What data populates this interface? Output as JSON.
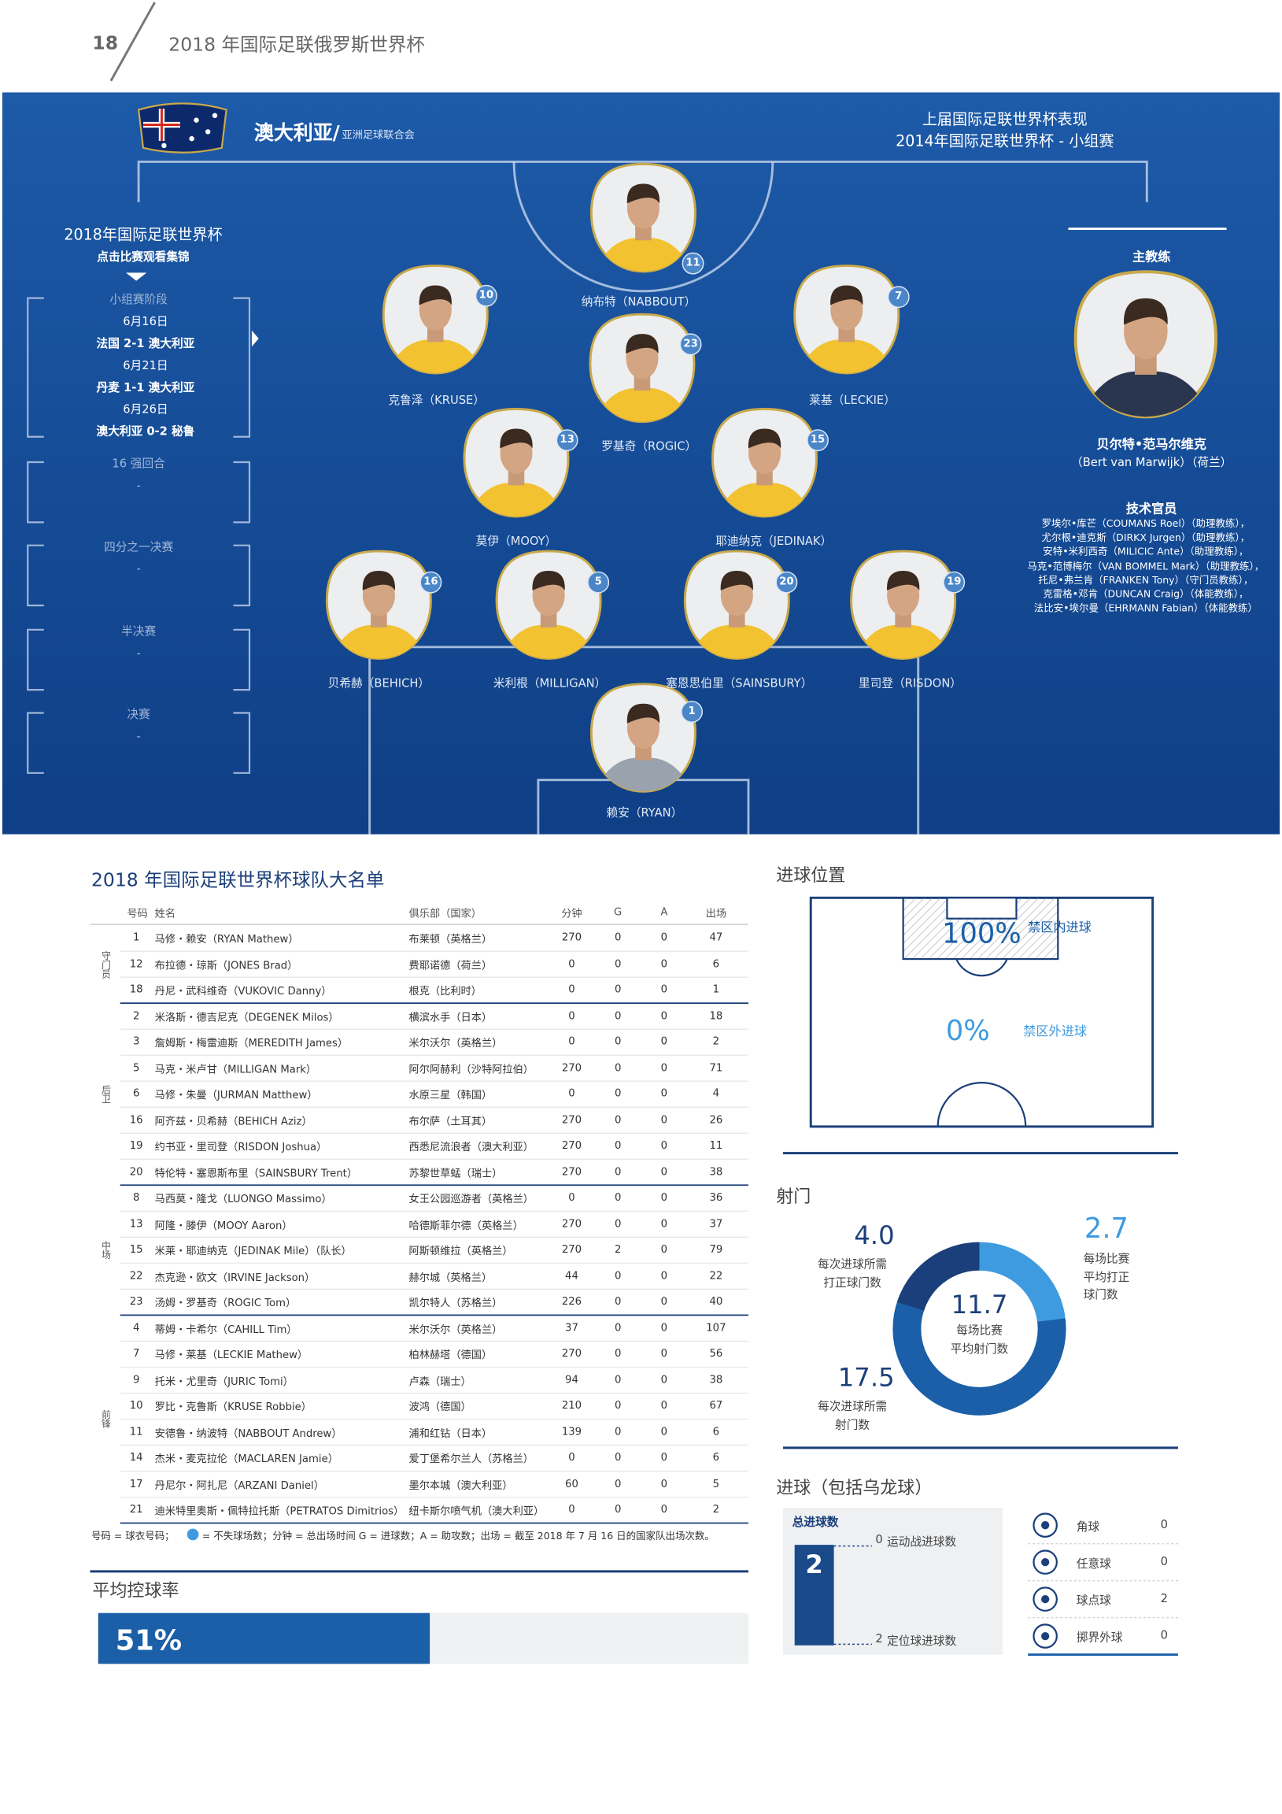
{
  "header": {
    "page_number": 18,
    "title": "2018 年国际足联俄罗斯世界杯"
  },
  "team": {
    "name": "澳大利亚/",
    "confederation": "亚洲足球联合会"
  },
  "previous": {
    "title": "上届国际足联世界杯表现",
    "result": "2014年国际足联世界杯 - 小组赛"
  },
  "tournament": {
    "title": "2018年国际足联世界杯",
    "subtitle": "点击比赛观看集锦",
    "stages": [
      {
        "name": "小组赛阶段",
        "matches": [
          {
            "date": "6月16日",
            "result": "法国 2-1 澳大利亚"
          },
          {
            "date": "6月21日",
            "result": "丹麦 1-1 澳大利亚"
          },
          {
            "date": "6月26日",
            "result": "澳大利亚 0-2 秘鲁"
          }
        ]
      },
      {
        "name": "16 强回合",
        "result": "-"
      },
      {
        "name": "四分之一决赛",
        "result": "-"
      },
      {
        "name": "半决赛",
        "result": "-"
      },
      {
        "name": "决赛",
        "result": "-"
      }
    ]
  },
  "lineup": [
    {
      "number": 11,
      "name": "纳布特（NABBOUT）"
    },
    {
      "number": 10,
      "name": "克鲁泽（KRUSE）"
    },
    {
      "number": 23,
      "name": "罗基奇（ROGIC）"
    },
    {
      "number": 7,
      "name": "莱基（LECKIE）"
    },
    {
      "number": 13,
      "name": "莫伊（MOOY）"
    },
    {
      "number": 15,
      "name": "耶迪纳克（JEDINAK）"
    },
    {
      "number": 16,
      "name": "贝希赫（BEHICH）"
    },
    {
      "number": 5,
      "name": "米利根（MILLIGAN）"
    },
    {
      "number": 20,
      "name": "塞恩思伯里（SAINSBURY）"
    },
    {
      "number": 19,
      "name": "里司登（RISDON）"
    },
    {
      "number": 1,
      "name": "赖安（RYAN）"
    }
  ],
  "coach": {
    "heading": "主教练",
    "name": "贝尔特•范马尔维克",
    "detail": "（Bert van Marwijk）（荷兰）"
  },
  "staff": {
    "heading": "技术官员",
    "members": [
      "罗埃尔•库芒（COUMANS Roel）（助理教练），",
      "尤尔根•迪克斯（DIRKX Jurgen）（助理教练），",
      "安特•米利西奇（MILICIC Ante）（助理教练），",
      "马克•范博梅尔（VAN BOMMEL Mark）（助理教练），",
      "托尼•弗兰肯（FRANKEN Tony）（守门员教练），",
      "克雷格•邓肯（DUNCAN Craig）（体能教练），",
      "法比安•埃尔曼（EHRMANN Fabian）（体能教练）"
    ]
  },
  "squad": {
    "title": "2018 年国际足联世界杯球队大名单",
    "columns": [
      "号码",
      "姓名",
      "俱乐部（国家）",
      "分钟",
      "G",
      "A",
      "出场"
    ],
    "groups": [
      {
        "label": "守门员",
        "rows": [
          [
            1,
            "马修・赖安（RYAN Mathew）",
            "布莱顿（英格兰）",
            270,
            0,
            0,
            47
          ],
          [
            12,
            "布拉德・琼斯（JONES Brad）",
            "费耶诺德（荷兰）",
            0,
            0,
            0,
            6
          ],
          [
            18,
            "丹尼・武科维奇（VUKOVIC Danny）",
            "根克（比利时）",
            0,
            0,
            0,
            1
          ]
        ]
      },
      {
        "label": "后卫",
        "rows": [
          [
            2,
            "米洛斯・德吉尼克（DEGENEK Milos）",
            "横滨水手（日本）",
            0,
            0,
            0,
            18
          ],
          [
            3,
            "詹姆斯・梅雷迪斯（MEREDITH James）",
            "米尔沃尔（英格兰）",
            0,
            0,
            0,
            2
          ],
          [
            5,
            "马克・米卢甘（MILLIGAN Mark）",
            "阿尔阿赫利（沙特阿拉伯）",
            270,
            0,
            0,
            71
          ],
          [
            6,
            "马修・朱曼（JURMAN Matthew）",
            "水原三星（韩国）",
            0,
            0,
            0,
            4
          ],
          [
            16,
            "阿齐兹・贝希赫（BEHICH Aziz）",
            "布尔萨（土耳其）",
            270,
            0,
            0,
            26
          ],
          [
            19,
            "约书亚・里司登（RISDON Joshua）",
            "西悉尼流浪者（澳大利亚）",
            270,
            0,
            0,
            11
          ],
          [
            20,
            "特伦特・塞恩斯布里（SAINSBURY Trent）",
            "苏黎世草蜢（瑞士）",
            270,
            0,
            0,
            38
          ]
        ]
      },
      {
        "label": "中场",
        "rows": [
          [
            8,
            "马西莫・隆戈（LUONGO Massimo）",
            "女王公园巡游者（英格兰）",
            0,
            0,
            0,
            36
          ],
          [
            13,
            "阿隆・滕伊（MOOY Aaron）",
            "哈德斯菲尔德（英格兰）",
            270,
            0,
            0,
            37
          ],
          [
            15,
            "米莱・耶迪纳克（JEDINAK Mile）（队长）",
            "阿斯顿维拉（英格兰）",
            270,
            2,
            0,
            79
          ],
          [
            22,
            "杰克逊・欧文（IRVINE Jackson）",
            "赫尔城（英格兰）",
            44,
            0,
            0,
            22
          ],
          [
            23,
            "汤姆・罗基奇（ROGIC Tom）",
            "凯尔特人（苏格兰）",
            226,
            0,
            0,
            40
          ]
        ]
      },
      {
        "label": "前锋",
        "rows": [
          [
            4,
            "蒂姆・卡希尔（CAHILL Tim）",
            "米尔沃尔（英格兰）",
            37,
            0,
            0,
            107
          ],
          [
            7,
            "马修・莱基（LECKIE Mathew）",
            "柏林赫塔（德国）",
            270,
            0,
            0,
            56
          ],
          [
            9,
            "托米・尤里奇（JURIC Tomi）",
            "卢森（瑞士）",
            94,
            0,
            0,
            38
          ],
          [
            10,
            "罗比・克鲁斯（KRUSE Robbie）",
            "波鸿（德国）",
            210,
            0,
            0,
            67
          ],
          [
            11,
            "安德鲁・纳波特（NABBOUT Andrew）",
            "浦和红钻（日本）",
            139,
            0,
            0,
            6
          ],
          [
            14,
            "杰米・麦克拉伦（MACLAREN Jamie）",
            "爱丁堡希尔兰人（苏格兰）",
            0,
            0,
            0,
            6
          ],
          [
            17,
            "丹尼尔・阿扎尼（ARZANI Daniel）",
            "墨尔本城（澳大利亚）",
            60,
            0,
            0,
            5
          ],
          [
            21,
            "迪米特里奥斯・佩特拉托斯（PETRATOS Dimitrios）",
            "纽卡斯尔喷气机（澳大利亚）",
            0,
            0,
            0,
            2
          ]
        ]
      }
    ],
    "footnote": [
      "号码 = 球衣号码；",
      "= 不失球场数；分钟 = 总出场时间 G = 进球数；A = 助攻数；出场 = 截至 2018 年 7 月 16 日的国家队出场次数。"
    ]
  },
  "possession": {
    "title": "平均控球率",
    "share": {
      "value": 51,
      "label": "51%"
    }
  },
  "goal_location": {
    "title": "进球位置",
    "inside": {
      "share": {
        "value": 100,
        "label": "100%"
      },
      "label": "禁区内进球"
    },
    "outside": {
      "share": {
        "value": 0,
        "label": "0%"
      },
      "label": "禁区外进球"
    }
  },
  "shots": {
    "title": "射门",
    "on_target_per_goal": {
      "value": 4,
      "label": "4.0",
      "caption": [
        "每次进球所需",
        "打正球门数"
      ]
    },
    "on_target_per_match": {
      "value": 2.7,
      "caption": [
        "每场比赛",
        "平均打正",
        "球门数"
      ]
    },
    "per_match": {
      "value": 11.7,
      "caption": [
        "每场比赛",
        "平均射门数"
      ]
    },
    "per_goal": {
      "value": 17.5,
      "caption": [
        "每次进球所需",
        "射门数"
      ]
    }
  },
  "goals": {
    "title": "进球（包括乌龙球）",
    "total_label": "总进球数",
    "total": 2,
    "open_play": {
      "count": 0,
      "label": "运动战进球数"
    },
    "set_pieces": {
      "count": 2,
      "label": "定位球进球数"
    },
    "set_piece_types": [
      {
        "label": "角球",
        "count": 0
      },
      {
        "label": "任意球",
        "count": 0
      },
      {
        "label": "球点球",
        "count": 2
      },
      {
        "label": "掷界外球",
        "count": 0
      }
    ]
  }
}
